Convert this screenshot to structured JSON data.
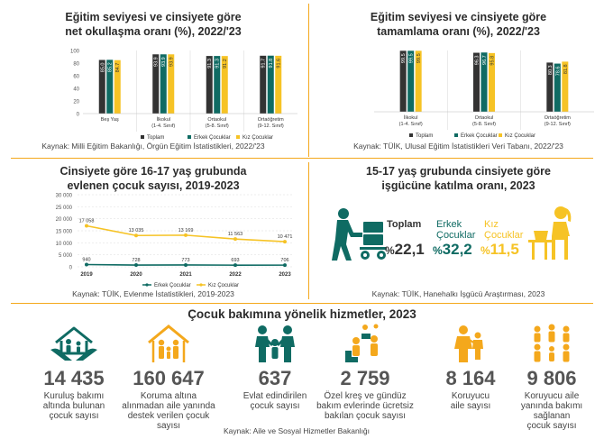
{
  "colors": {
    "toplam": "#333333",
    "erkek": "#0f6b63",
    "kiz": "#f6c325",
    "accent": "#f4a81c",
    "line_erkek": "#0f6b63",
    "line_kiz": "#f6c325"
  },
  "legend": {
    "toplam": "Toplam",
    "erkek": "Erkek Çocuklar",
    "kiz": "Kız Çocuklar"
  },
  "enrollment": {
    "title_line1": "Eğitim seviyesi ve cinsiyete göre",
    "title_line2": "net okullaşma oranı (%), 2022/'23",
    "source": "Kaynak: Milli Eğitim Bakanlığı, Örgün Eğitim İstatistikleri, 2022/'23"
  },
  "completion": {
    "title_line1": "Eğitim seviyesi ve cinsiyete göre",
    "title_line2": "tamamlama oranı (%), 2022/'23",
    "source": "Kaynak: TÜİK, Ulusal Eğitim İstatistikleri Veri Tabanı, 2022/'23"
  },
  "marriage": {
    "title_line1": "Cinsiyete göre 16-17 yaş grubunda",
    "title_line2": "evlenen çocuk sayısı, 2019-2023",
    "source": "Kaynak: TÜİK, Evlenme İstatistikleri, 2019-2023"
  },
  "lfp": {
    "title_line1": "15-17 yaş grubunda cinsiyete göre",
    "title_line2": "işgücüne katılma oranı, 2023",
    "toplam_label": "Toplam",
    "erkek_label_1": "Erkek",
    "erkek_label_2": "Çocuklar",
    "kiz_label_1": "Kız",
    "kiz_label_2": "Çocuklar",
    "pct_sign": "%",
    "toplam_value": "22,1",
    "erkek_value": "32,2",
    "kiz_value": "11,5",
    "source": "Kaynak: TÜİK, Hanehalkı İşgücü Araştırması, 2023"
  },
  "services": {
    "title": "Çocuk bakımına yönelik hizmetler, 2023",
    "source": "Kaynak: Aile ve Sosyal Hizmetler Bakanlığı",
    "items": [
      {
        "value": "14 435",
        "label_1": "Kuruluş bakımı",
        "label_2": "altında bulunan",
        "label_3": "çocuk sayısı",
        "label_4": "",
        "icon": "hands-family-icon"
      },
      {
        "value": "160 647",
        "label_1": "Koruma altına",
        "label_2": "alınmadan aile yanında",
        "label_3": "destek verilen çocuk",
        "label_4": "sayısı",
        "icon": "family-house-icon"
      },
      {
        "value": "637",
        "label_1": "Evlat edindirilen",
        "label_2": "çocuk sayısı",
        "label_3": "",
        "label_4": "",
        "icon": "adoptive-family-icon"
      },
      {
        "value": "2 759",
        "label_1": "Özel kreş ve gündüz",
        "label_2": "bakım evlerinde ücretsiz",
        "label_3": "bakılan çocuk sayısı",
        "label_4": "",
        "icon": "nursery-children-icon"
      },
      {
        "value": "8 164",
        "label_1": "Koruyucu",
        "label_2": "aile sayısı",
        "label_3": "",
        "label_4": "",
        "icon": "foster-parent-icon"
      },
      {
        "value": "9 806",
        "label_1": "Koruyucu aile",
        "label_2": "yanında bakımı",
        "label_3": "sağlanan",
        "label_4": "çocuk sayısı",
        "icon": "foster-children-icon"
      }
    ]
  },
  "chart_data": [
    {
      "type": "bar",
      "categories": [
        [
          "Beş Yaş"
        ],
        [
          "İlkokul",
          "(1-4. Sınıf)"
        ],
        [
          "Ortaokul",
          "(5-8. Sınıf)"
        ],
        [
          "Ortaöğretim",
          "(9-12. Sınıf)"
        ]
      ],
      "series": [
        {
          "name": "Toplam",
          "values": [
            85.0,
            93.9,
            91.3,
            91.7
          ]
        },
        {
          "name": "Erkek Çocuklar",
          "values": [
            85.2,
            93.9,
            91.3,
            91.8
          ]
        },
        {
          "name": "Kız Çocuklar",
          "values": [
            84.7,
            93.9,
            91.2,
            91.6
          ]
        }
      ],
      "yticks": [
        0,
        20,
        40,
        60,
        80,
        100
      ],
      "ylim": [
        0,
        100
      ]
    },
    {
      "type": "bar",
      "categories": [
        [
          "İlkokul",
          "(1-4. Sınıf)"
        ],
        [
          "Ortaokul",
          "(5-8. Sınıf)"
        ],
        [
          "Ortaöğretim",
          "(9-12. Sınıf)"
        ]
      ],
      "series": [
        {
          "name": "Toplam",
          "values": [
            99.5,
            96.3,
            80.3
          ]
        },
        {
          "name": "Erkek Çocuklar",
          "values": [
            99.5,
            96.7,
            78.6
          ]
        },
        {
          "name": "Kız Çocuklar",
          "values": [
            99.5,
            95.8,
            81.8
          ]
        }
      ],
      "ylim": [
        0,
        100
      ]
    },
    {
      "type": "line",
      "x": [
        "2019",
        "2020",
        "2021",
        "2022",
        "2023"
      ],
      "series": [
        {
          "name": "Erkek Çocuklar",
          "values": [
            940,
            728,
            773,
            693,
            706
          ],
          "labels": [
            "940",
            "728",
            "773",
            "693",
            "706"
          ]
        },
        {
          "name": "Kız Çocuklar",
          "values": [
            17058,
            13035,
            13169,
            11563,
            10471
          ],
          "labels": [
            "17 058",
            "13 035",
            "13 169",
            "11 563",
            "10 471"
          ]
        }
      ],
      "yticks": [
        "0",
        "5 000",
        "10 000",
        "15 000",
        "20 000",
        "25 000",
        "30 000"
      ],
      "ylim": [
        0,
        30000
      ]
    }
  ]
}
